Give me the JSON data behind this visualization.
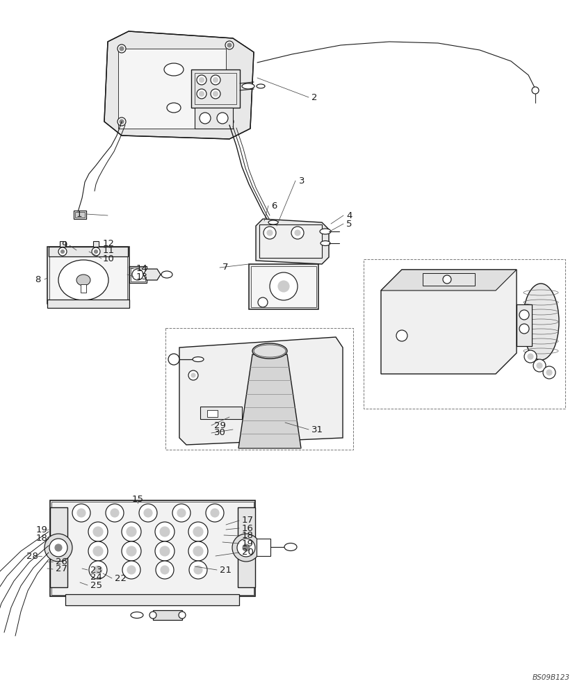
{
  "bg_color": "#ffffff",
  "line_color": "#1a1a1a",
  "label_color": "#1a1a1a",
  "label_fontsize": 9.5,
  "watermark": "BS09B123",
  "figsize": [
    8.4,
    10.0
  ],
  "dpi": 100,
  "lw": 0.85,
  "lw_thin": 0.5,
  "gray_fill": "#e8e8e8",
  "gray_mid": "#cccccc",
  "gray_dark": "#888888"
}
